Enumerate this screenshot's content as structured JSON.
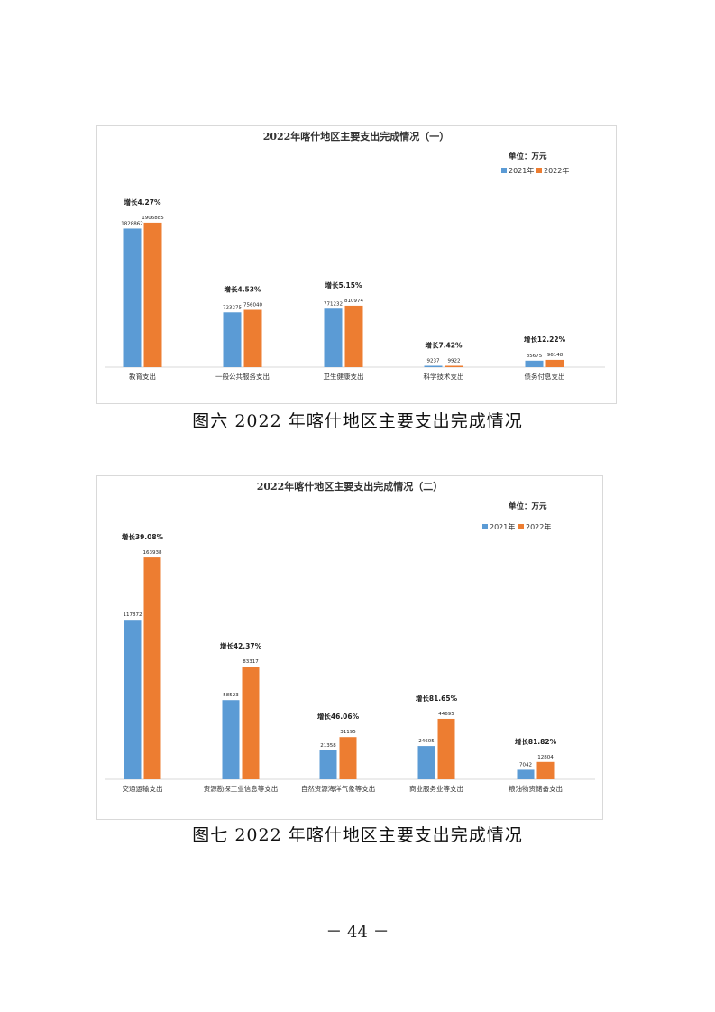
{
  "chart_data": [
    {
      "type": "bar",
      "title": "2022年喀什地区主要支出完成情况（一）",
      "unit": "单位：万元",
      "categories": [
        "教育支出",
        "一般公共服务支出",
        "卫生健康支出",
        "科学技术支出",
        "债务付息支出"
      ],
      "series": [
        {
          "name": "2021年",
          "color": "#5b9bd5",
          "values": [
            1828862,
            723275,
            771232,
            9237,
            85675
          ]
        },
        {
          "name": "2022年",
          "color": "#ed7d31",
          "values": [
            1906885,
            756040,
            810974,
            9922,
            96148
          ]
        }
      ],
      "annotations": [
        "增长4.27%",
        "增长4.53%",
        "增长5.15%",
        "增长7.42%",
        "增长12.22%"
      ],
      "legend": "top-right",
      "grid": false,
      "ylim": [
        0,
        2150000
      ]
    },
    {
      "type": "bar",
      "title": "2022年喀什地区主要支出完成情况（二）",
      "unit": "单位：万元",
      "categories": [
        "交通运输支出",
        "资源勘探工业信息等支出",
        "自然资源海洋气象等支出",
        "商业服务业等支出",
        "粮油物资储备支出"
      ],
      "series": [
        {
          "name": "2021年",
          "color": "#5b9bd5",
          "values": [
            117872,
            58523,
            21358,
            24605,
            7042
          ]
        },
        {
          "name": "2022年",
          "color": "#ed7d31",
          "values": [
            163938,
            83317,
            31195,
            44695,
            12804
          ]
        }
      ],
      "annotations": [
        "增长39.08%",
        "增长42.37%",
        "增长46.06%",
        "增长81.65%",
        "增长81.82%"
      ],
      "legend": "top-right",
      "grid": false,
      "ylim": [
        0,
        184000
      ]
    }
  ],
  "captions": {
    "figure6": "图六  2022 年喀什地区主要支出完成情况",
    "figure7": "图七  2022 年喀什地区主要支出完成情况"
  },
  "page_number": "－ 44 －"
}
